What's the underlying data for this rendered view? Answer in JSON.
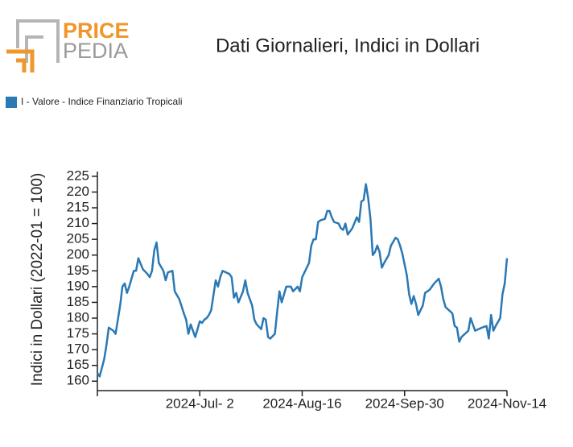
{
  "logo": {
    "line1": "PRICE",
    "line2": "PEDIA"
  },
  "chart_data": {
    "type": "line",
    "title": "Dati Giornalieri, Indici in Dollari",
    "y_label": "Indici in Dollari (2022-01 = 100)",
    "legend": "top-left",
    "x": [
      "2024-05-18",
      "2024-05-19",
      "2024-05-21",
      "2024-05-22",
      "2024-05-23",
      "2024-05-25",
      "2024-05-26",
      "2024-05-28",
      "2024-05-29",
      "2024-05-30",
      "2024-05-31",
      "2024-06-01",
      "2024-06-03",
      "2024-06-04",
      "2024-06-05",
      "2024-06-07",
      "2024-06-09",
      "2024-06-10",
      "2024-06-11",
      "2024-06-12",
      "2024-06-13",
      "2024-06-14",
      "2024-06-16",
      "2024-06-17",
      "2024-06-18",
      "2024-06-20",
      "2024-06-21",
      "2024-06-23",
      "2024-06-25",
      "2024-06-26",
      "2024-06-27",
      "2024-06-28",
      "2024-06-29",
      "2024-06-30",
      "2024-07-02",
      "2024-07-03",
      "2024-07-04",
      "2024-07-05",
      "2024-07-06",
      "2024-07-07",
      "2024-07-09",
      "2024-07-10",
      "2024-07-11",
      "2024-07-12",
      "2024-07-15",
      "2024-07-16",
      "2024-07-17",
      "2024-07-18",
      "2024-07-19",
      "2024-07-21",
      "2024-07-22",
      "2024-07-23",
      "2024-07-25",
      "2024-07-26",
      "2024-07-27",
      "2024-07-29",
      "2024-07-30",
      "2024-07-31",
      "2024-08-01",
      "2024-08-02",
      "2024-08-04",
      "2024-08-05",
      "2024-08-06",
      "2024-08-07",
      "2024-08-09",
      "2024-08-11",
      "2024-08-12",
      "2024-08-14",
      "2024-08-15",
      "2024-08-16",
      "2024-08-18",
      "2024-08-19",
      "2024-08-20",
      "2024-08-21",
      "2024-08-22",
      "2024-08-23",
      "2024-08-24",
      "2024-08-26",
      "2024-08-27",
      "2024-08-28",
      "2024-08-29",
      "2024-08-30",
      "2024-09-01",
      "2024-09-02",
      "2024-09-03",
      "2024-09-04",
      "2024-09-05",
      "2024-09-07",
      "2024-09-09",
      "2024-09-10",
      "2024-09-11",
      "2024-09-12",
      "2024-09-13",
      "2024-09-14",
      "2024-09-15",
      "2024-09-16",
      "2024-09-17",
      "2024-09-18",
      "2024-09-19",
      "2024-09-20",
      "2024-09-21",
      "2024-09-23",
      "2024-09-24",
      "2024-09-26",
      "2024-09-27",
      "2024-09-28",
      "2024-09-29",
      "2024-10-01",
      "2024-10-02",
      "2024-10-03",
      "2024-10-04",
      "2024-10-05",
      "2024-10-06",
      "2024-10-08",
      "2024-10-09",
      "2024-10-11",
      "2024-10-13",
      "2024-10-15",
      "2024-10-16",
      "2024-10-17",
      "2024-10-18",
      "2024-10-21",
      "2024-10-22",
      "2024-10-23",
      "2024-10-24",
      "2024-10-25",
      "2024-10-28",
      "2024-10-29",
      "2024-10-31",
      "2024-11-03",
      "2024-11-05",
      "2024-11-06",
      "2024-11-07",
      "2024-11-08",
      "2024-11-09",
      "2024-11-11",
      "2024-11-12",
      "2024-11-13",
      "2024-11-14"
    ],
    "series": [
      {
        "name": "I - Valore - Indice Finanziario Tropicali",
        "color": "#2a78b4",
        "values": [
          162.6,
          161.5,
          167,
          171.5,
          177,
          176,
          175,
          184,
          190,
          191,
          188,
          190,
          195,
          195,
          199,
          195.5,
          194,
          193,
          195,
          201.5,
          204,
          197.5,
          195,
          192,
          194.5,
          195,
          188.5,
          186,
          181.5,
          179.5,
          175,
          178,
          176,
          174,
          179,
          178.5,
          179.5,
          180,
          181,
          182.5,
          192,
          190,
          193,
          195,
          194,
          193,
          186.5,
          188,
          185,
          188.5,
          192,
          188,
          184,
          179.5,
          178,
          176.5,
          180,
          179.5,
          174,
          173.5,
          175,
          182,
          188.5,
          185,
          190,
          190,
          188.5,
          190,
          188.5,
          193,
          196,
          197.5,
          203,
          205,
          205,
          210.5,
          211,
          211.5,
          214,
          214,
          212,
          210.5,
          210,
          208.5,
          208,
          210,
          206.5,
          208.5,
          212,
          210.5,
          217,
          217.5,
          222.5,
          218,
          211.5,
          200,
          201,
          203,
          201,
          196,
          197.5,
          200,
          203,
          205.5,
          205,
          203,
          200.5,
          193.5,
          187.5,
          184.5,
          187,
          184.5,
          181,
          184,
          188,
          189,
          191,
          192.5,
          190,
          186,
          183.5,
          181.5,
          177.5,
          177,
          172.5,
          174,
          176,
          180,
          176,
          177,
          177.5,
          173.5,
          181,
          176,
          177.5,
          180,
          187.5,
          191,
          199
        ]
      }
    ],
    "xlim": [
      "2024-05-18",
      "2024-11-14"
    ],
    "xticks": [
      {
        "value": "2024-07-02",
        "label": "2024-Jul- 2"
      },
      {
        "value": "2024-08-16",
        "label": "2024-Aug-16"
      },
      {
        "value": "2024-09-30",
        "label": "2024-Sep-30"
      },
      {
        "value": "2024-11-14",
        "label": "2024-Nov-14"
      }
    ],
    "ylim": [
      157,
      226.5
    ],
    "yticks": [
      160,
      165,
      170,
      175,
      180,
      185,
      190,
      195,
      200,
      205,
      210,
      215,
      220,
      225
    ]
  }
}
